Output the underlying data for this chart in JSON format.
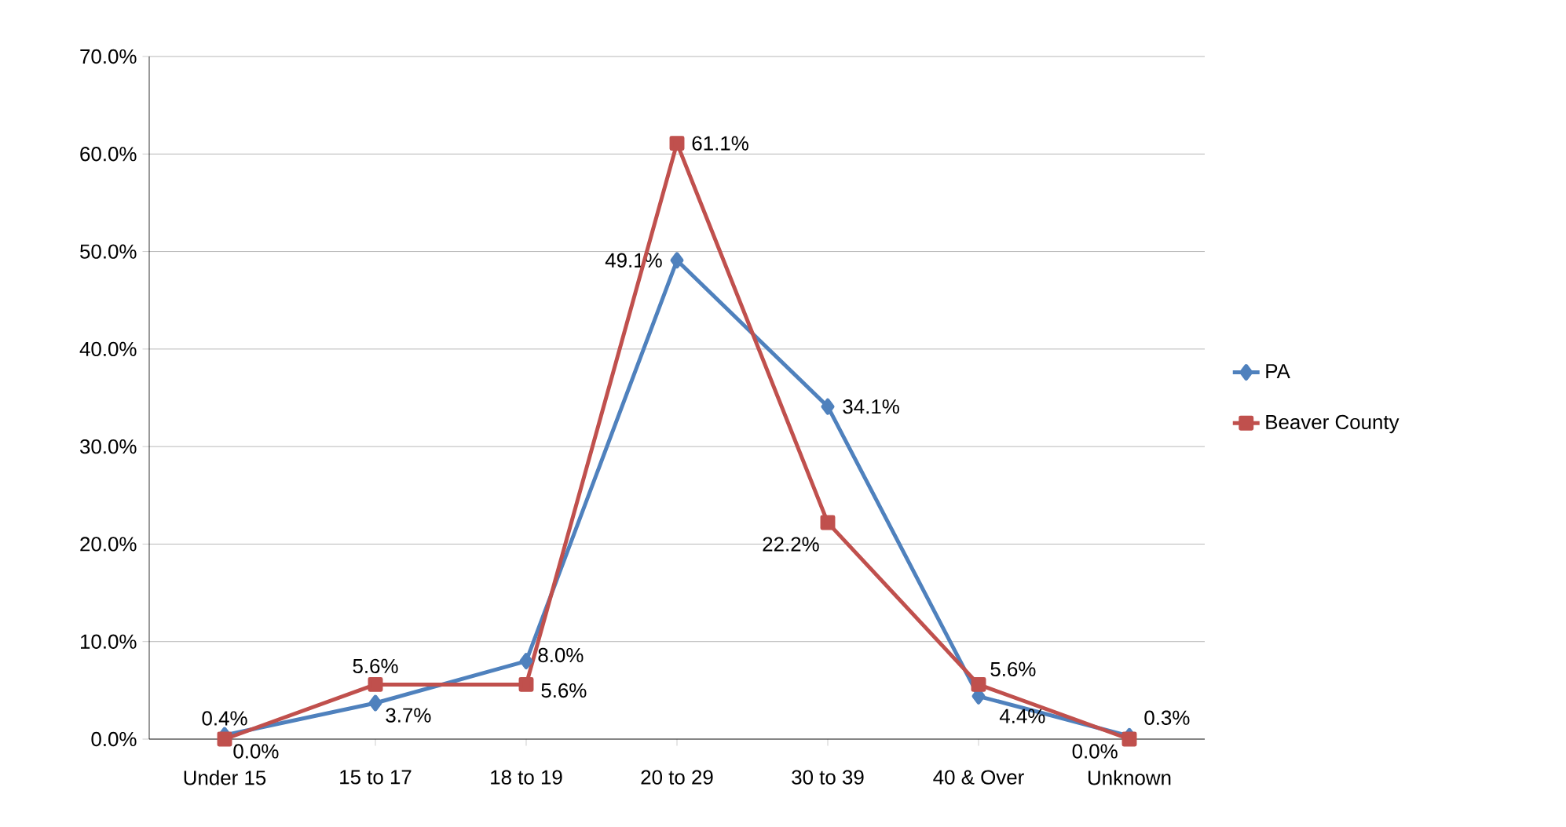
{
  "chart_data": {
    "type": "line",
    "categories": [
      "Under 15",
      "15 to 17",
      "18 to 19",
      "20 to 29",
      "30 to 39",
      "40 & Over",
      "Unknown"
    ],
    "series": [
      {
        "name": "PA",
        "color": "#4f81bd",
        "marker": "diamond",
        "values": [
          0.4,
          3.7,
          8.0,
          49.1,
          34.1,
          4.4,
          0.3
        ],
        "value_labels": [
          "0.4%",
          "3.7%",
          "8.0%",
          "49.1%",
          "34.1%",
          "4.4%",
          "0.3%"
        ]
      },
      {
        "name": "Beaver County",
        "color": "#c0504d",
        "marker": "square",
        "values": [
          0.0,
          5.6,
          5.6,
          61.1,
          22.2,
          5.6,
          0.0
        ],
        "value_labels": [
          "0.0%",
          "5.6%",
          "5.6%",
          "61.1%",
          "22.2%",
          "5.6%",
          "0.0%"
        ]
      }
    ],
    "ylim": [
      0,
      70
    ],
    "yticks": [
      {
        "value": 0,
        "label": "0.0%"
      },
      {
        "value": 10,
        "label": "10.0%"
      },
      {
        "value": 20,
        "label": "20.0%"
      },
      {
        "value": 30,
        "label": "30.0%"
      },
      {
        "value": 40,
        "label": "40.0%"
      },
      {
        "value": 50,
        "label": "50.0%"
      },
      {
        "value": 60,
        "label": "60.0%"
      },
      {
        "value": 70,
        "label": "70.0%"
      }
    ],
    "grid": "y",
    "legend": "right"
  }
}
